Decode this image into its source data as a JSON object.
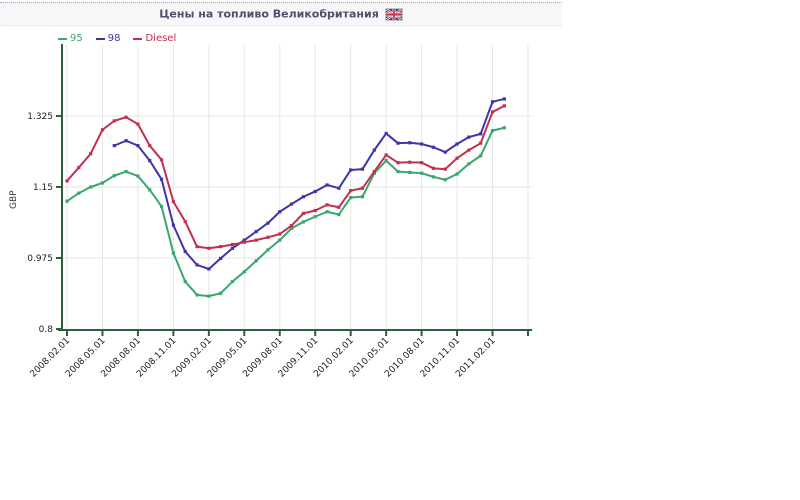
{
  "header": {
    "title": "Цены на топливо Великобритания",
    "flag_icon": "uk-flag",
    "bg_color": "#f7f7f9",
    "border_color": "#9aa7c7",
    "text_color": "#50506e"
  },
  "chart_data": {
    "type": "line",
    "title": "Цены на топливо Великобритания",
    "ylabel": "GBP",
    "ylim": [
      0.8,
      1.5
    ],
    "yticks": [
      0.8,
      0.975,
      1.15,
      1.325
    ],
    "xticklabels": [
      "2008.02.01",
      "2008.05.01",
      "2008.08.01",
      "2008.11.01",
      "2009.02.01",
      "2009.05.01",
      "2009.08.01",
      "2009.11.01",
      "2010.02.01",
      "2010.05.01",
      "2010.08.01",
      "2010.11.01",
      "2011.02.01"
    ],
    "categories": [
      "2008.02.01",
      "2008.03.01",
      "2008.04.01",
      "2008.05.01",
      "2008.06.01",
      "2008.07.01",
      "2008.08.01",
      "2008.09.01",
      "2008.10.01",
      "2008.11.01",
      "2008.12.01",
      "2009.01.01",
      "2009.02.01",
      "2009.03.01",
      "2009.04.01",
      "2009.05.01",
      "2009.06.01",
      "2009.07.01",
      "2009.08.01",
      "2009.09.01",
      "2009.10.01",
      "2009.11.01",
      "2009.12.01",
      "2010.01.01",
      "2010.02.01",
      "2010.03.01",
      "2010.04.01",
      "2010.05.01",
      "2010.06.01",
      "2010.07.01",
      "2010.08.01",
      "2010.09.01",
      "2010.10.01",
      "2010.11.01",
      "2010.12.01",
      "2011.01.01",
      "2011.02.01",
      "2011.03.01"
    ],
    "grid": true,
    "legend_position": "top-left",
    "axis_color": "#2f5d3f",
    "grid_color": "#e6e6e6",
    "tick_label_color": "#222222",
    "series": [
      {
        "name": "95",
        "color": "#3aa76d",
        "start_index": 0,
        "values": [
          1.115,
          1.135,
          1.15,
          1.16,
          1.178,
          1.188,
          1.177,
          1.143,
          1.102,
          0.987,
          0.917,
          0.884,
          0.881,
          0.888,
          0.917,
          0.941,
          0.968,
          0.995,
          1.019,
          1.048,
          1.064,
          1.077,
          1.089,
          1.082,
          1.124,
          1.126,
          1.184,
          1.215,
          1.188,
          1.186,
          1.184,
          1.175,
          1.168,
          1.182,
          1.207,
          1.227,
          1.289,
          1.296
        ]
      },
      {
        "name": "98",
        "color": "#3e35a6",
        "start_index": 4,
        "values": [
          1.252,
          1.264,
          1.252,
          1.215,
          1.169,
          1.056,
          0.991,
          0.958,
          0.948,
          0.974,
          0.999,
          1.019,
          1.04,
          1.061,
          1.089,
          1.108,
          1.126,
          1.139,
          1.155,
          1.147,
          1.192,
          1.194,
          1.241,
          1.282,
          1.258,
          1.259,
          1.256,
          1.248,
          1.236,
          1.256,
          1.273,
          1.281,
          1.36,
          1.367
        ]
      },
      {
        "name": "Diesel",
        "color": "#c13051",
        "start_index": 0,
        "values": [
          1.165,
          1.198,
          1.232,
          1.291,
          1.313,
          1.322,
          1.305,
          1.252,
          1.217,
          1.114,
          1.065,
          1.003,
          0.999,
          1.003,
          1.008,
          1.014,
          1.019,
          1.026,
          1.034,
          1.055,
          1.085,
          1.092,
          1.106,
          1.1,
          1.141,
          1.147,
          1.188,
          1.229,
          1.21,
          1.211,
          1.21,
          1.196,
          1.194,
          1.221,
          1.241,
          1.258,
          1.335,
          1.35
        ]
      }
    ]
  }
}
